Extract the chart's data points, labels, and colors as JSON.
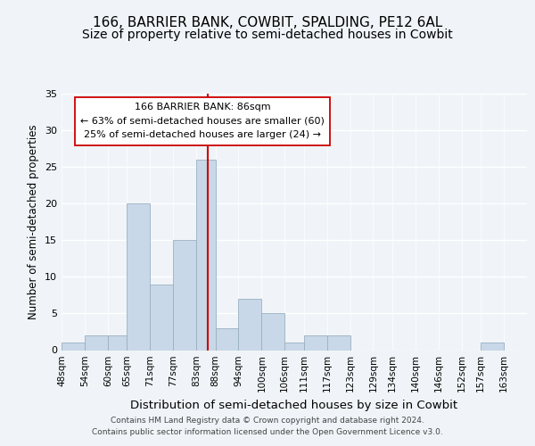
{
  "title": "166, BARRIER BANK, COWBIT, SPALDING, PE12 6AL",
  "subtitle": "Size of property relative to semi-detached houses in Cowbit",
  "xlabel": "Distribution of semi-detached houses by size in Cowbit",
  "ylabel": "Number of semi-detached properties",
  "footer_line1": "Contains HM Land Registry data © Crown copyright and database right 2024.",
  "footer_line2": "Contains public sector information licensed under the Open Government Licence v3.0.",
  "bin_labels": [
    "48sqm",
    "54sqm",
    "60sqm",
    "65sqm",
    "71sqm",
    "77sqm",
    "83sqm",
    "88sqm",
    "94sqm",
    "100sqm",
    "106sqm",
    "111sqm",
    "117sqm",
    "123sqm",
    "129sqm",
    "134sqm",
    "140sqm",
    "146sqm",
    "152sqm",
    "157sqm",
    "163sqm"
  ],
  "bin_edges": [
    48,
    54,
    60,
    65,
    71,
    77,
    83,
    88,
    94,
    100,
    106,
    111,
    117,
    123,
    129,
    134,
    140,
    146,
    152,
    157,
    163,
    169
  ],
  "counts": [
    1,
    2,
    2,
    20,
    9,
    15,
    26,
    3,
    7,
    5,
    1,
    2,
    2,
    0,
    0,
    0,
    0,
    0,
    0,
    1,
    0
  ],
  "bar_color": "#c8d8e8",
  "bar_edgecolor": "#9ab0c0",
  "property_size": 86,
  "marker_line_color": "#cc0000",
  "annotation_title": "166 BARRIER BANK: 86sqm",
  "annotation_line1": "← 63% of semi-detached houses are smaller (60)",
  "annotation_line2": "25% of semi-detached houses are larger (24) →",
  "annotation_box_edgecolor": "#cc0000",
  "annotation_box_facecolor": "#ffffff",
  "ylim": [
    0,
    35
  ],
  "yticks": [
    0,
    5,
    10,
    15,
    20,
    25,
    30,
    35
  ],
  "background_color": "#f0f4f8",
  "title_fontsize": 11,
  "subtitle_fontsize": 10,
  "xlabel_fontsize": 9.5,
  "ylabel_fontsize": 8.5,
  "tick_fontsize": 7.5,
  "footer_fontsize": 6.5
}
